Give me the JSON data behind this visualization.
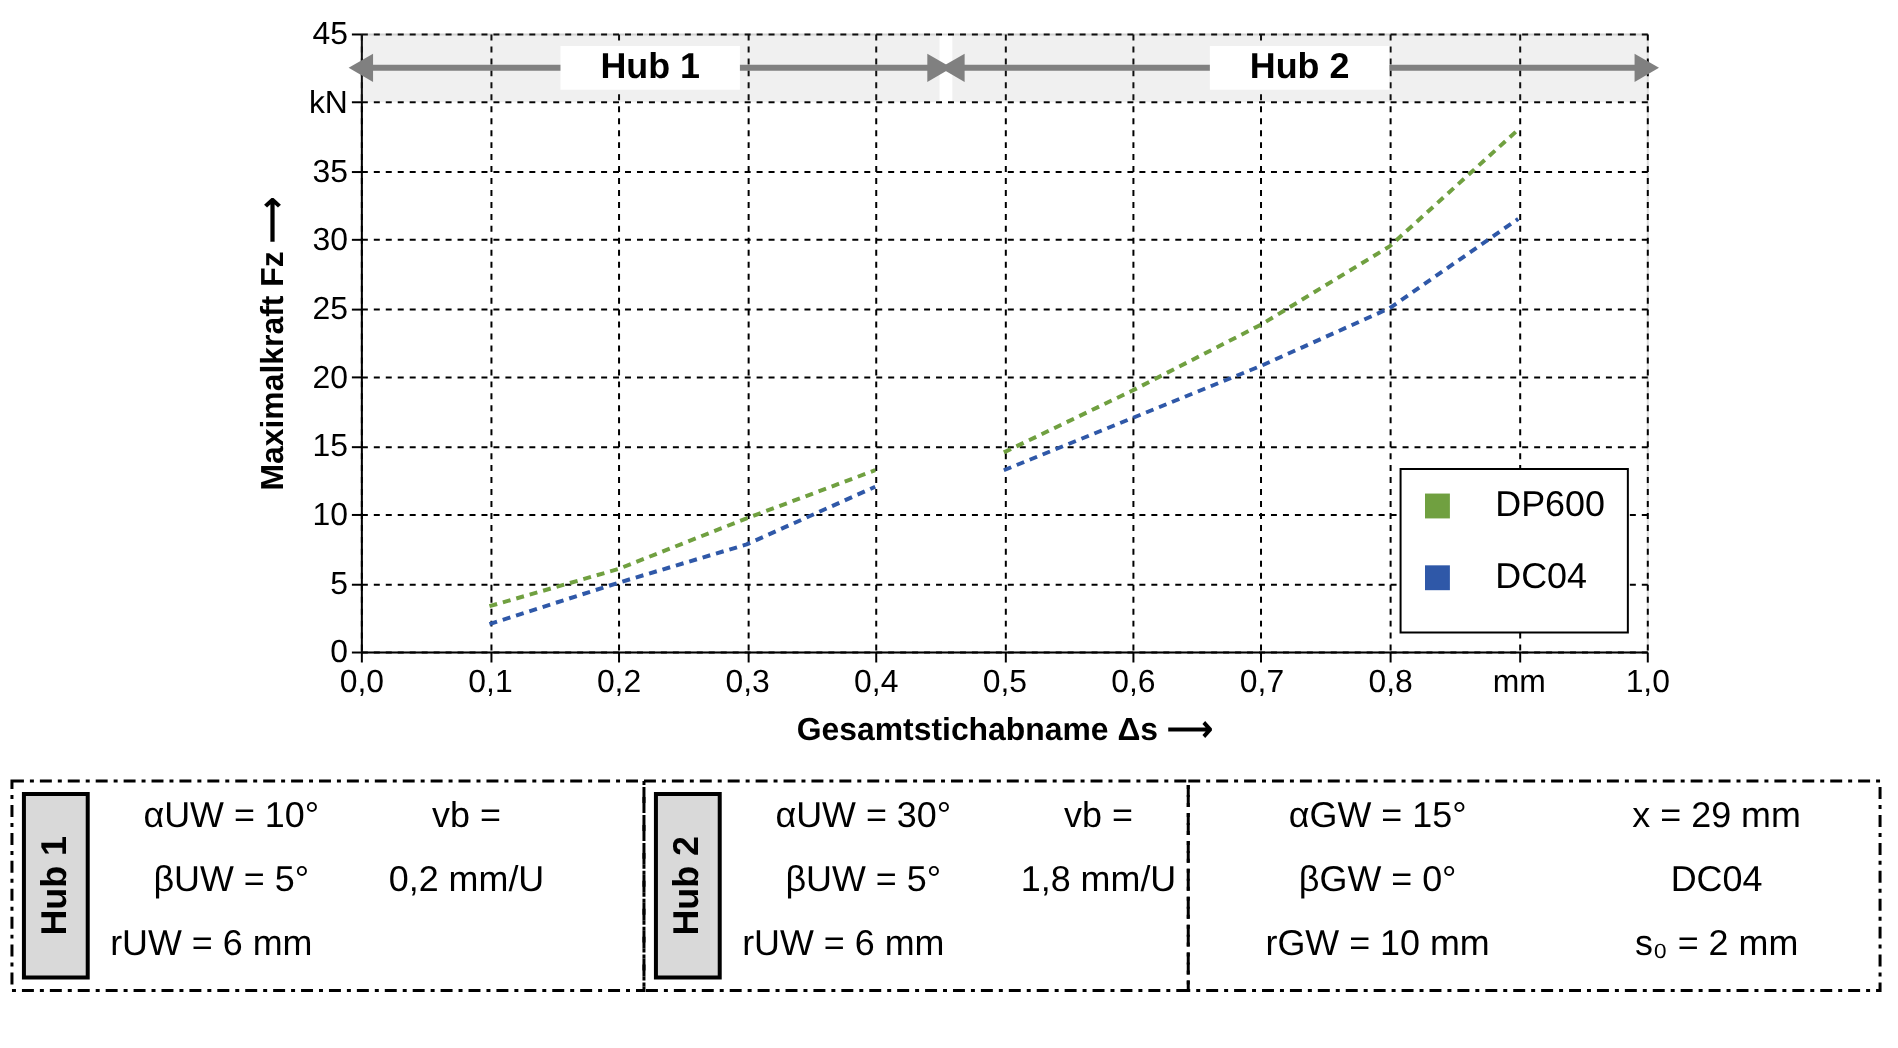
{
  "chart_data": {
    "type": "line",
    "xlabel": "Gesamtstichabname Δs ⟶",
    "ylabel": "Maximalkraft Fz ⟶",
    "x": [
      0.1,
      0.2,
      0.3,
      0.4,
      0.45,
      0.5,
      0.6,
      0.7,
      0.8,
      0.9
    ],
    "series": [
      {
        "name": "DP600",
        "color": "#70a040",
        "values": [
          3.3,
          6,
          9.7,
          13.2,
          null,
          14.5,
          19,
          23.8,
          29.5,
          38
        ]
      },
      {
        "name": "DC04",
        "color": "#2f58a8",
        "values": [
          2,
          5,
          7.8,
          12,
          null,
          13.2,
          17,
          20.8,
          25,
          31.5
        ]
      }
    ],
    "xlim": [
      0,
      1
    ],
    "xticks": [
      {
        "value": 0,
        "label": "0,0"
      },
      {
        "value": 0.1,
        "label": "0,1"
      },
      {
        "value": 0.2,
        "label": "0,2"
      },
      {
        "value": 0.3,
        "label": "0,3"
      },
      {
        "value": 0.4,
        "label": "0,4"
      },
      {
        "value": 0.5,
        "label": "0,5"
      },
      {
        "value": 0.6,
        "label": "0,6"
      },
      {
        "value": 0.7,
        "label": "0,7"
      },
      {
        "value": 0.8,
        "label": "0,8"
      },
      {
        "value": 0.9,
        "label": "mm"
      },
      {
        "value": 1,
        "label": "1,0"
      }
    ],
    "ylim": [
      0,
      45
    ],
    "yticks": [
      0,
      5,
      10,
      15,
      20,
      25,
      30,
      35,
      {
        "value": 40,
        "label": "kN"
      },
      45
    ],
    "grid": true,
    "line_style": "dashed",
    "marker": "none",
    "legend": "bottom right",
    "bands": [
      {
        "axis": "x",
        "from": 0,
        "to": 0.45,
        "label": "Hub 1",
        "color": "#808080"
      },
      {
        "axis": "x",
        "from": 0.46,
        "to": 1,
        "label": "Hub 2",
        "color": "#808080"
      }
    ],
    "annotations": [
      "Hub 1",
      "αUW = 10°",
      "vb =",
      "βUW = 5°",
      "0,2 mm/U",
      "rUW = 6 mm",
      "Hub 2",
      "αUW = 30°",
      "vb =",
      "βUW = 5°",
      "1,8 mm/U",
      "rUW = 6 mm",
      "αGW = 15°",
      "x = 29 mm",
      "βGW = 0°",
      "DC04",
      "rGW = 10 mm",
      "s₀ = 2 mm"
    ]
  }
}
